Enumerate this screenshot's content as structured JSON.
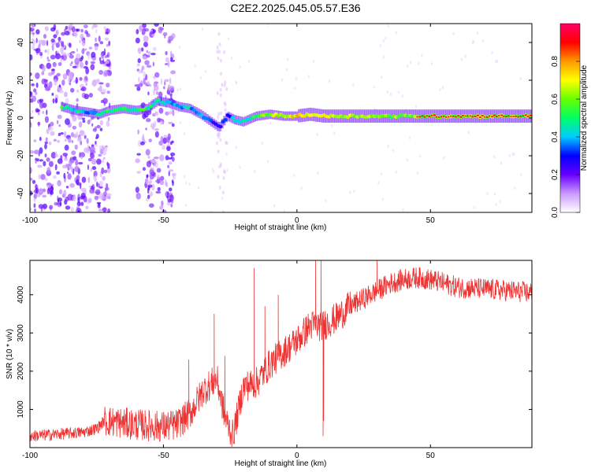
{
  "title": "C2E2.2025.045.05.57.E36",
  "chart_data": [
    {
      "type": "heatmap",
      "xlabel": "Height of straight line (km)",
      "ylabel": "Frequency (Hz)",
      "xlim": [
        -100,
        88
      ],
      "ylim": [
        -50,
        50
      ],
      "xticks": [
        -100,
        -50,
        0,
        50
      ],
      "yticks": [
        -40,
        -20,
        0,
        20,
        40
      ],
      "colorbar": {
        "label": "Normalized spectral amplitude",
        "range": [
          0,
          1
        ],
        "ticks": [
          "0.0",
          "0.2",
          "0.4",
          "0.6",
          "0.8"
        ],
        "colors": [
          "#ffffff",
          "#cc99ff",
          "#6600ff",
          "#0000ff",
          "#00ccff",
          "#00ff66",
          "#66ff00",
          "#ffff00",
          "#ff9900",
          "#ff0000",
          "#ff0066"
        ]
      },
      "ridge": {
        "x": [
          -88,
          -83,
          -78,
          -74,
          -70,
          -65,
          -60,
          -56,
          -52,
          -48,
          -44,
          -40,
          -36,
          -32,
          -29,
          -26,
          -23,
          -20,
          -15,
          -10,
          -5,
          0,
          5,
          10,
          20,
          30,
          40,
          50,
          60,
          70,
          80,
          88
        ],
        "freq": [
          6,
          4,
          3,
          2,
          4,
          5,
          4,
          5,
          9,
          8,
          6,
          5,
          2,
          -2,
          -5,
          1,
          -1,
          -2,
          1,
          2,
          1,
          1,
          2,
          1,
          1,
          1,
          1,
          1,
          1,
          1,
          1,
          1
        ],
        "amplitude": [
          0.5,
          0.45,
          0.4,
          0.45,
          0.5,
          0.5,
          0.5,
          0.5,
          0.45,
          0.4,
          0.4,
          0.4,
          0.35,
          0.3,
          0.3,
          0.35,
          0.4,
          0.45,
          0.55,
          0.6,
          0.65,
          0.75,
          0.7,
          0.7,
          0.65,
          0.6,
          0.6,
          0.6,
          0.62,
          0.62,
          0.6,
          0.6
        ]
      },
      "noise_bands": [
        [
          -100,
          -70
        ],
        [
          -60,
          -46
        ]
      ],
      "sparse_bands": [
        [
          -30,
          -26
        ]
      ]
    },
    {
      "type": "line",
      "xlabel": "Height of straight line (km)",
      "ylabel": "SNR (10 * v/v)",
      "xlim": [
        -100,
        88
      ],
      "ylim": [
        0,
        4900
      ],
      "xticks": [
        -100,
        -50,
        0,
        50
      ],
      "yticks": [
        1000,
        2000,
        3000,
        4000
      ],
      "color": "#ee3333",
      "trend": {
        "x": [
          -100,
          -80,
          -75,
          -72,
          -60,
          -50,
          -45,
          -40,
          -35,
          -30,
          -27,
          -24,
          -20,
          -15,
          -10,
          -5,
          0,
          5,
          10,
          15,
          20,
          30,
          35,
          40,
          45,
          50,
          55,
          60,
          70,
          80,
          88
        ],
        "y": [
          300,
          400,
          500,
          700,
          600,
          550,
          600,
          900,
          1500,
          1800,
          800,
          300,
          1600,
          1700,
          2200,
          2500,
          2800,
          3200,
          3200,
          3400,
          3700,
          4100,
          4300,
          4400,
          4450,
          4400,
          4300,
          4200,
          4150,
          4100,
          4050
        ]
      },
      "spikes": [
        {
          "x": -40.5,
          "y": 2300
        },
        {
          "x": -31,
          "y": 3500
        },
        {
          "x": -27,
          "y": 2400
        },
        {
          "x": -16,
          "y": 4700
        },
        {
          "x": -12,
          "y": 3700
        },
        {
          "x": -7,
          "y": 4000
        },
        {
          "x": 7,
          "y": 4900
        },
        {
          "x": 9,
          "y": 4900
        },
        {
          "x": 9.8,
          "y": 300
        },
        {
          "x": 10,
          "y": 700
        },
        {
          "x": 30,
          "y": 4900
        }
      ],
      "noise_amplitude": 260
    }
  ]
}
